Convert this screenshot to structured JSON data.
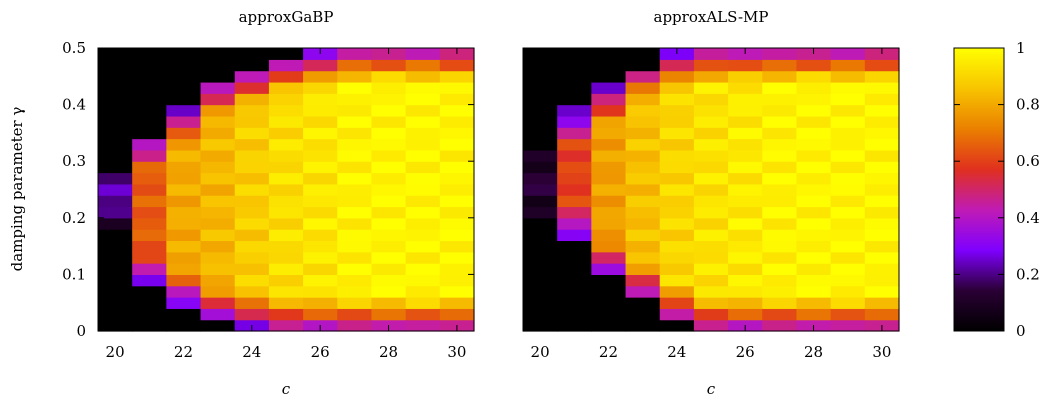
{
  "chart_data": [
    {
      "type": "heatmap",
      "title": "approxGaBP",
      "xlabel": "c",
      "ylabel": "damping parameter γ",
      "x": [
        20,
        21,
        22,
        23,
        24,
        25,
        26,
        27,
        28,
        29,
        30
      ],
      "xticks": [
        20,
        22,
        24,
        26,
        28,
        30
      ],
      "xlim": [
        19.5,
        30.5
      ],
      "ylim": [
        0,
        0.5
      ],
      "yticks": [
        0,
        0.1,
        0.2,
        0.3,
        0.4,
        0.5
      ],
      "ytick_labels": [
        "0",
        "0.1",
        "0.2",
        "0.3",
        "0.4",
        "0.5"
      ],
      "grid": false,
      "rows": 25,
      "feasible_region_gamma": {
        "c": [
          20,
          21,
          22,
          23,
          24,
          25,
          26,
          27,
          28,
          29,
          30
        ],
        "lower": [
          0.19,
          0.08,
          0.05,
          0.02,
          0.01,
          0.0,
          0.0,
          0.0,
          0.0,
          0.0,
          0.0
        ],
        "upper": [
          0.29,
          0.35,
          0.39,
          0.44,
          0.46,
          0.48,
          0.49,
          0.5,
          0.5,
          0.5,
          0.5
        ],
        "interior_value": [
          0.3,
          0.65,
          0.8,
          0.83,
          0.88,
          0.92,
          0.94,
          0.97,
          0.98,
          0.98,
          0.98
        ]
      }
    },
    {
      "type": "heatmap",
      "title": "approxALS-MP",
      "xlabel": "c",
      "x": [
        20,
        21,
        22,
        23,
        24,
        25,
        26,
        27,
        28,
        29,
        30
      ],
      "xticks": [
        20,
        22,
        24,
        26,
        28,
        30
      ],
      "xlim": [
        19.5,
        30.5
      ],
      "ylim": [
        0,
        0.5
      ],
      "grid": false,
      "rows": 25,
      "feasible_region_gamma": {
        "c": [
          20,
          21,
          22,
          23,
          24,
          25,
          26,
          27,
          28,
          29,
          30
        ],
        "lower": [
          0.2,
          0.16,
          0.1,
          0.06,
          0.02,
          0.0,
          0.0,
          0.0,
          0.0,
          0.0,
          0.0
        ],
        "upper": [
          0.32,
          0.39,
          0.43,
          0.47,
          0.49,
          0.5,
          0.5,
          0.5,
          0.5,
          0.5,
          0.5
        ],
        "interior_value": [
          0.15,
          0.6,
          0.78,
          0.85,
          0.9,
          0.93,
          0.95,
          0.97,
          0.98,
          0.98,
          0.98
        ]
      }
    }
  ],
  "colorbar": {
    "min": 0,
    "max": 1,
    "ticks": [
      0,
      0.2,
      0.4,
      0.6,
      0.8,
      1
    ],
    "tick_labels": [
      "0",
      "0.2",
      "0.4",
      "0.6",
      "0.8",
      "1"
    ],
    "colormap": [
      "#000000",
      "#2a0035",
      "#7f00ff",
      "#c01bb4",
      "#e0301e",
      "#ea8000",
      "#f8c400",
      "#ffff00"
    ]
  }
}
